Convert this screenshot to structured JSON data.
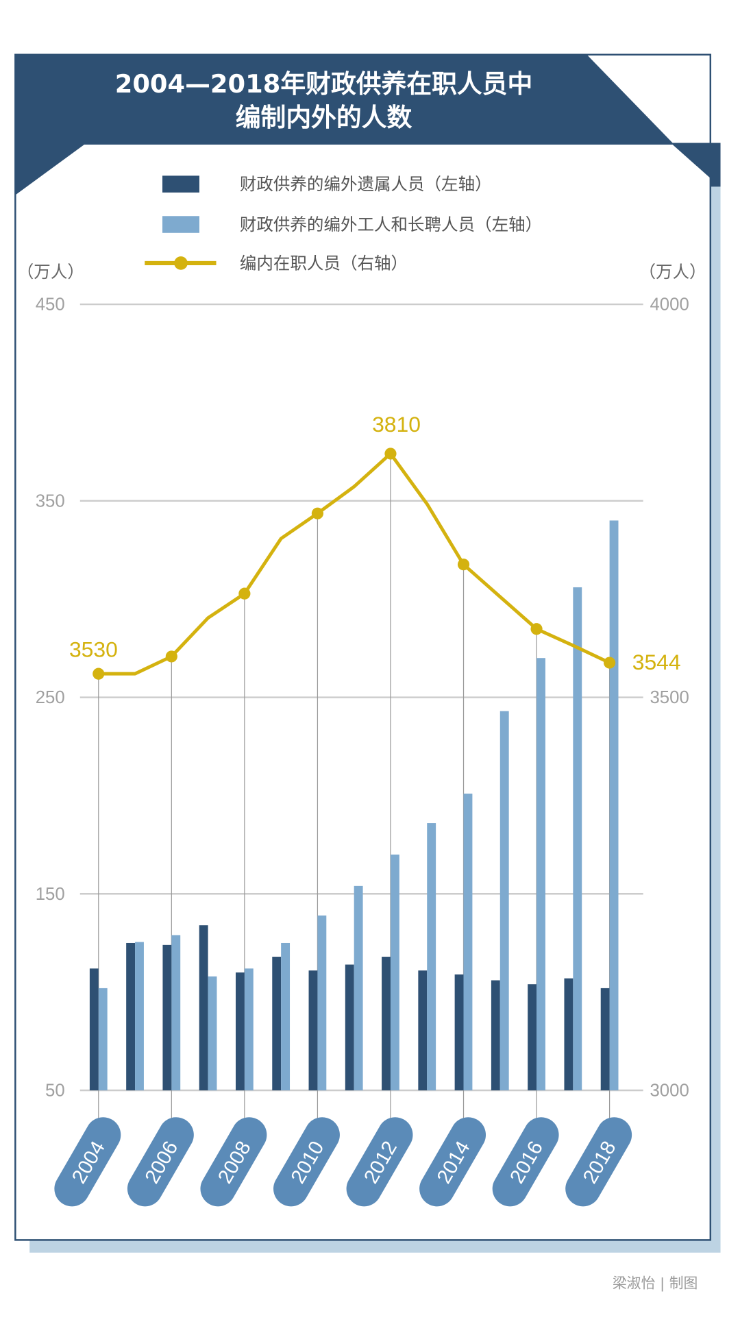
{
  "chart_data": {
    "type": "bar+line",
    "title_line1": "2004—2018年财政供养在职人员中",
    "title_line2": "编制内外的人数",
    "categories": [
      "2004",
      "2005",
      "2006",
      "2007",
      "2008",
      "2009",
      "2010",
      "2011",
      "2012",
      "2013",
      "2014",
      "2015",
      "2016",
      "2017",
      "2018"
    ],
    "x_tick_labels": [
      "2004",
      "2006",
      "2008",
      "2010",
      "2012",
      "2014",
      "2016",
      "2018"
    ],
    "left_axis": {
      "unit": "（万人）",
      "ylim": [
        50,
        450
      ],
      "ticks": [
        "450",
        "350",
        "250",
        "150",
        "50"
      ]
    },
    "right_axis": {
      "unit": "（万人）",
      "ylim": [
        3000,
        4000
      ],
      "ticks": [
        "4000",
        "3500",
        "3000"
      ]
    },
    "grid": true,
    "legend_placement": "top",
    "series": [
      {
        "name": "财政供养的编外遗属人员（左轴）",
        "type": "bar",
        "axis": "left",
        "color": "#2e5073",
        "values": [
          112,
          125,
          124,
          134,
          110,
          118,
          111,
          114,
          118,
          111,
          109,
          106,
          104,
          107,
          102
        ]
      },
      {
        "name": "财政供养的编外工人和长聘人员（左轴）",
        "type": "bar",
        "axis": "left",
        "color": "#7eaacf",
        "values": [
          102,
          125.5,
          129,
          108,
          112,
          125,
          139,
          154,
          170,
          186,
          201,
          243,
          270,
          306,
          340
        ]
      },
      {
        "name": "编内在职人员（右轴）",
        "type": "line",
        "axis": "right",
        "color": "#d4b20f",
        "values": [
          3530,
          3530,
          3552,
          3601,
          3632,
          3702,
          3734,
          3768,
          3810,
          3746,
          3669,
          3628,
          3587,
          3566,
          3544
        ]
      }
    ],
    "annotations": [
      "3530",
      "3810",
      "3544"
    ]
  },
  "credit": "梁淑怡 | 制图",
  "colors": {
    "header": "#2e5073",
    "shadow": "#bdd3e3",
    "pill": "#5b8bb8",
    "grid": "#cccccc"
  }
}
